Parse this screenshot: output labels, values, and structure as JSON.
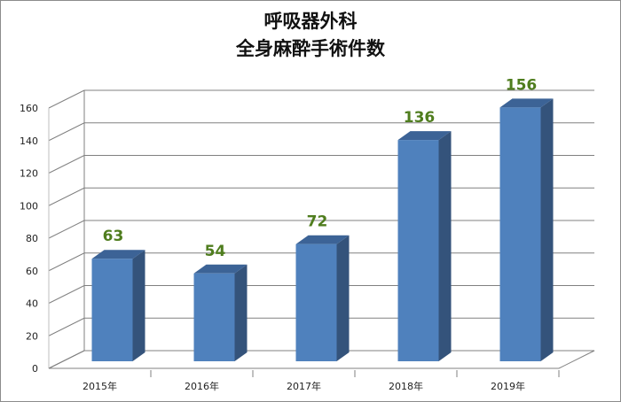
{
  "chart_data": {
    "type": "bar",
    "title_lines": [
      "呼吸器外科",
      "全身麻酔手術件数"
    ],
    "categories": [
      "2015年",
      "2016年",
      "2017年",
      "2018年",
      "2019年"
    ],
    "values": [
      63,
      54,
      72,
      136,
      156
    ],
    "ylim": [
      0,
      160
    ],
    "yticks": [
      0,
      20,
      40,
      60,
      80,
      100,
      120,
      140,
      160
    ],
    "grid": true,
    "data_labels": true,
    "legend": "none",
    "colors": {
      "bar_front": "#4f81bd",
      "bar_side": "#34537b",
      "bar_top": "#3c6396",
      "label": "#4f7d1e",
      "grid": "#808080"
    }
  }
}
